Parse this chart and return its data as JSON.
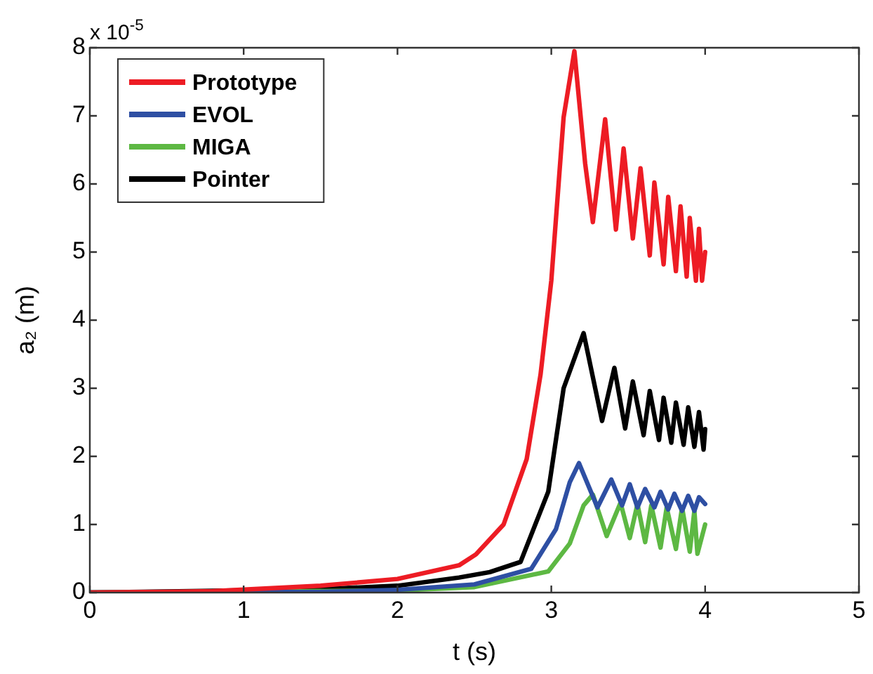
{
  "chart_data": {
    "type": "line",
    "xlabel": "t (s)",
    "ylabel": "a₂ (m)",
    "annotations": [
      "x 10$^{-5}$"
    ],
    "xlim": [
      0,
      5
    ],
    "xticks": [
      0,
      1,
      2,
      3,
      4,
      5
    ],
    "ylim": [
      0,
      8
    ],
    "yticks": [
      0,
      1,
      2,
      3,
      4,
      5,
      6,
      7,
      8
    ],
    "grid": false,
    "legend": "top left",
    "marker": "none",
    "line_style": "solid",
    "series": [
      {
        "name": "Prototype",
        "color": "#ed1c24",
        "x": [
          0,
          0.8,
          1.5,
          2.0,
          2.4,
          2.51,
          2.69,
          2.84,
          2.93,
          3.0,
          3.08,
          3.15,
          3.22,
          3.27,
          3.35,
          3.42,
          3.47,
          3.53,
          3.58,
          3.64,
          3.67,
          3.73,
          3.76,
          3.81,
          3.84,
          3.88,
          3.9,
          3.94,
          3.96,
          3.98,
          4.0
        ],
        "values": [
          0,
          0.02,
          0.1,
          0.2,
          0.4,
          0.56,
          1.0,
          1.96,
          3.2,
          4.58,
          6.98,
          7.95,
          6.3,
          5.44,
          6.95,
          5.33,
          6.52,
          5.2,
          6.23,
          4.95,
          6.02,
          4.82,
          5.81,
          4.72,
          5.67,
          4.64,
          5.5,
          4.58,
          5.34,
          4.58,
          5.0
        ]
      },
      {
        "name": "EVOL",
        "color": "#2e4fa3",
        "x": [
          0,
          1.5,
          2.0,
          2.5,
          2.87,
          3.03,
          3.12,
          3.18,
          3.3,
          3.39,
          3.46,
          3.51,
          3.56,
          3.61,
          3.67,
          3.71,
          3.76,
          3.8,
          3.85,
          3.89,
          3.93,
          3.96,
          4.0
        ],
        "values": [
          0,
          0.01,
          0.04,
          0.12,
          0.35,
          0.93,
          1.62,
          1.9,
          1.25,
          1.66,
          1.28,
          1.59,
          1.25,
          1.52,
          1.25,
          1.48,
          1.22,
          1.45,
          1.2,
          1.42,
          1.2,
          1.4,
          1.3
        ]
      },
      {
        "name": "MIGA",
        "color": "#5db843",
        "x": [
          0,
          2.0,
          2.5,
          2.98,
          3.12,
          3.21,
          3.27,
          3.36,
          3.45,
          3.51,
          3.56,
          3.61,
          3.65,
          3.71,
          3.75,
          3.81,
          3.85,
          3.9,
          3.93,
          3.95,
          4.0
        ],
        "values": [
          0,
          0.03,
          0.08,
          0.31,
          0.72,
          1.28,
          1.44,
          0.83,
          1.32,
          0.8,
          1.3,
          0.74,
          1.28,
          0.66,
          1.25,
          0.64,
          1.25,
          0.6,
          1.2,
          0.57,
          1.0
        ]
      },
      {
        "name": "Pointer",
        "color": "#000000",
        "x": [
          0,
          1.5,
          2.0,
          2.4,
          2.6,
          2.8,
          2.98,
          3.08,
          3.21,
          3.33,
          3.41,
          3.48,
          3.53,
          3.6,
          3.64,
          3.7,
          3.73,
          3.78,
          3.81,
          3.86,
          3.89,
          3.93,
          3.96,
          3.99,
          4.0
        ],
        "values": [
          0,
          0.05,
          0.1,
          0.22,
          0.3,
          0.45,
          1.48,
          3.0,
          3.81,
          2.52,
          3.3,
          2.41,
          3.1,
          2.31,
          2.96,
          2.24,
          2.86,
          2.2,
          2.79,
          2.17,
          2.72,
          2.14,
          2.65,
          2.1,
          2.4
        ]
      }
    ]
  }
}
